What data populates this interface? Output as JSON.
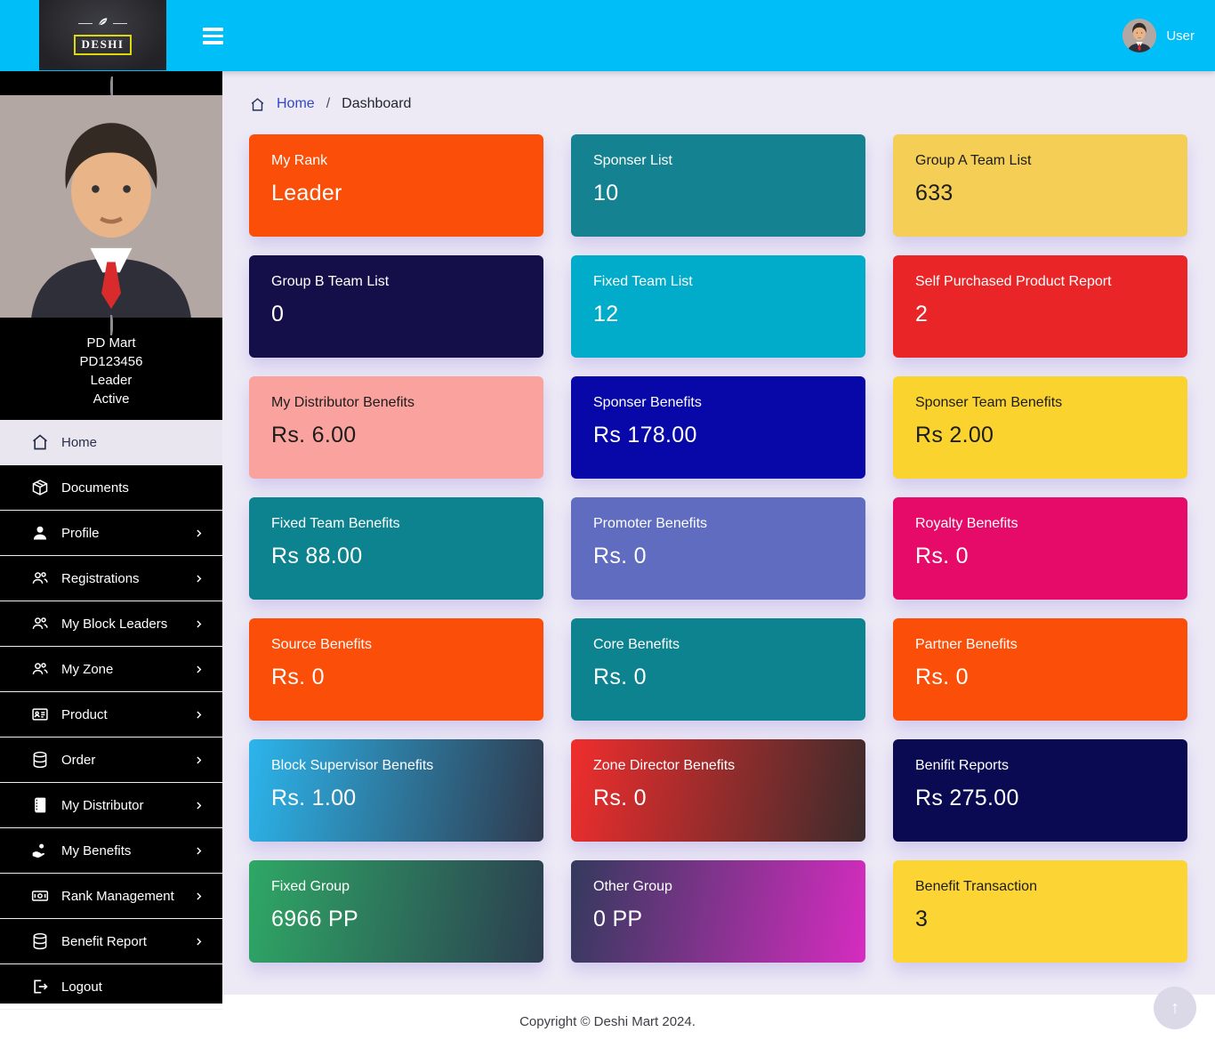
{
  "theme": {
    "topbar_bg": "#00bef7",
    "page_bg": "#edeaf6",
    "sidebar_bg": "#000000",
    "active_item_bg": "#e9e6f0",
    "active_item_text": "#273048",
    "breadcrumb_link": "#2f49c4"
  },
  "topbar": {
    "logo_text": "DESHI",
    "user_label": "User"
  },
  "sidebar": {
    "profile": {
      "name": "PD Mart",
      "member_id": "PD123456",
      "rank": "Leader",
      "status": "Active"
    },
    "items": [
      {
        "label": "Home",
        "icon": "home-icon",
        "active": true,
        "chevron": false
      },
      {
        "label": "Documents",
        "icon": "package-icon",
        "active": false,
        "chevron": false
      },
      {
        "label": "Profile",
        "icon": "user-icon",
        "active": false,
        "chevron": true
      },
      {
        "label": "Registrations",
        "icon": "users-icon",
        "active": false,
        "chevron": true
      },
      {
        "label": "My Block Leaders",
        "icon": "users-icon",
        "active": false,
        "chevron": true
      },
      {
        "label": "My Zone",
        "icon": "users-icon",
        "active": false,
        "chevron": true
      },
      {
        "label": "Product",
        "icon": "id-card-icon",
        "active": false,
        "chevron": true
      },
      {
        "label": "Order",
        "icon": "database-icon",
        "active": false,
        "chevron": true
      },
      {
        "label": "My Distributor",
        "icon": "book-icon",
        "active": false,
        "chevron": true
      },
      {
        "label": "My Benefits",
        "icon": "hand-benefits-icon",
        "active": false,
        "chevron": true
      },
      {
        "label": "Rank Management",
        "icon": "money-bill-icon",
        "active": false,
        "chevron": true
      },
      {
        "label": "Benefit Report",
        "icon": "database-icon",
        "active": false,
        "chevron": true
      },
      {
        "label": "Logout",
        "icon": "logout-icon",
        "active": false,
        "chevron": false
      }
    ]
  },
  "breadcrumb": {
    "home_label": "Home",
    "separator": "/",
    "current": "Dashboard"
  },
  "cards": [
    {
      "label": "My Rank",
      "value": "Leader",
      "bg": "#fb4e09",
      "text_color": "#ffffff"
    },
    {
      "label": "Sponser List",
      "value": "10",
      "bg": "#148291",
      "text_color": "#ffffff"
    },
    {
      "label": "Group A Team List",
      "value": "633",
      "bg": "#f5ce56",
      "text_color": "#1c1c1c"
    },
    {
      "label": "Group B Team List",
      "value": "0",
      "bg": "#140f48",
      "text_color": "#ffffff"
    },
    {
      "label": "Fixed Team List",
      "value": "12",
      "bg": "#00acc9",
      "text_color": "#ffffff"
    },
    {
      "label": "Self Purchased Product Report",
      "value": "2",
      "bg": "#e92528",
      "text_color": "#ffffff"
    },
    {
      "label": "My Distributor Benefits",
      "value": "Rs. 6.00",
      "bg": "#faa29e",
      "text_color": "#1c1c1c"
    },
    {
      "label": "Sponser Benefits",
      "value": "Rs 178.00",
      "bg": "#0808a8",
      "text_color": "#ffffff"
    },
    {
      "label": "Sponser Team Benefits",
      "value": "Rs 2.00",
      "bg": "#fbd32e",
      "text_color": "#1c1c1c"
    },
    {
      "label": "Fixed Team Benefits",
      "value": "Rs 88.00",
      "bg": "#0e8390",
      "text_color": "#ffffff"
    },
    {
      "label": "Promoter Benefits",
      "value": "Rs. 0",
      "bg": "#5f6cc0",
      "text_color": "#ffffff"
    },
    {
      "label": "Royalty Benefits",
      "value": "Rs. 0",
      "bg": "#e60b68",
      "text_color": "#ffffff"
    },
    {
      "label": "Source Benefits",
      "value": "Rs. 0",
      "bg": "#fb4e09",
      "text_color": "#ffffff"
    },
    {
      "label": "Core Benefits",
      "value": "Rs. 0",
      "bg": "#0e8390",
      "text_color": "#ffffff"
    },
    {
      "label": "Partner Benefits",
      "value": "Rs. 0",
      "bg": "#fb4e09",
      "text_color": "#ffffff"
    },
    {
      "label": "Block Supervisor Benefits",
      "value": "Rs. 1.00",
      "bg": "linear-gradient(100deg,#2cb5ec,#2f3a4d)",
      "text_color": "#ffffff"
    },
    {
      "label": "Zone Director Benefits",
      "value": "Rs. 0",
      "bg": "linear-gradient(100deg,#f02d2d,#3c2b2b)",
      "text_color": "#ffffff"
    },
    {
      "label": "Benifit Reports",
      "value": "Rs 275.00",
      "bg": "#0a0a52",
      "text_color": "#ffffff"
    },
    {
      "label": "Fixed Group",
      "value": "6966 PP",
      "bg": "linear-gradient(100deg,#2ea865,#2c3e50)",
      "text_color": "#ffffff"
    },
    {
      "label": "Other Group",
      "value": "0 PP",
      "bg": "linear-gradient(100deg,#333a5d,#d62cc0)",
      "text_color": "#ffffff"
    },
    {
      "label": "Benefit Transaction",
      "value": "3",
      "bg": "#fcd535",
      "text_color": "#1c1c1c"
    }
  ],
  "footer": {
    "copyright": "Copyright © Deshi Mart 2024."
  },
  "scroll_top": {
    "icon": "arrow-up-icon",
    "glyph": "↑"
  }
}
